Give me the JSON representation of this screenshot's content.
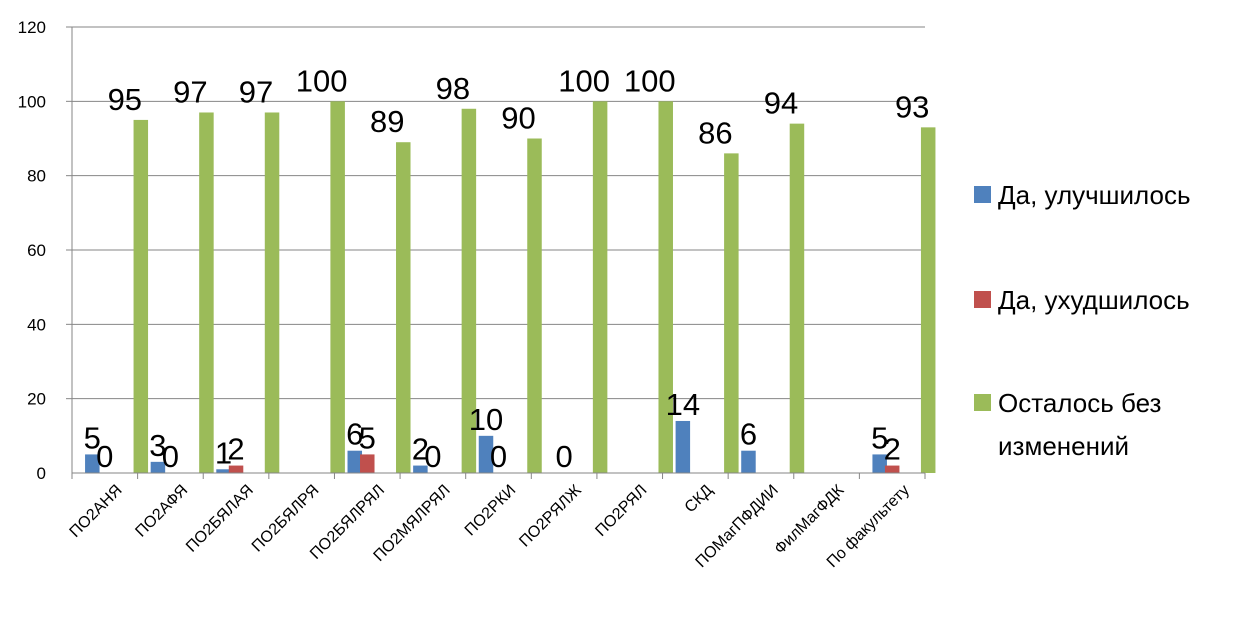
{
  "chart_data": {
    "type": "bar",
    "title": "",
    "xlabel": "",
    "ylabel": "",
    "ylim": [
      0,
      120
    ],
    "yticks": [
      0,
      20,
      40,
      60,
      80,
      100,
      120
    ],
    "grid": true,
    "legend_position": "right",
    "categories": [
      "ПО2АНЯ",
      "ПО2АФЯ",
      "ПО2БЯЛАЯ",
      "ПО2БЯЛРЯ",
      "ПО2БЯЛРЯЛ",
      "ПО2МЯЛРЯЛ",
      "ПО2РКИ",
      "ПО2РЯЛЖ",
      "ПО2РЯЛ",
      "СКД",
      "ПОМагПФДИИ",
      "ФилМагФДК",
      "По факультету"
    ],
    "series": [
      {
        "name": "Да, улучшилось",
        "color": "#4F81BD",
        "values": [
          5,
          3,
          1,
          null,
          6,
          2,
          10,
          null,
          null,
          14,
          6,
          null,
          5
        ]
      },
      {
        "name": "Да, ухудшилось",
        "color": "#C0504D",
        "values": [
          0,
          0,
          2,
          null,
          5,
          0,
          0,
          0,
          null,
          null,
          null,
          null,
          2
        ]
      },
      {
        "name": "Осталось без изменений",
        "color": "#9BBB59",
        "values": [
          95,
          97,
          97,
          100,
          89,
          98,
          90,
          100,
          100,
          86,
          94,
          null,
          93
        ]
      }
    ],
    "legend_lines": [
      [
        "Да, улучшилось"
      ],
      [
        "Да, ухудшилось"
      ],
      [
        "Осталось без",
        "изменений"
      ]
    ]
  }
}
